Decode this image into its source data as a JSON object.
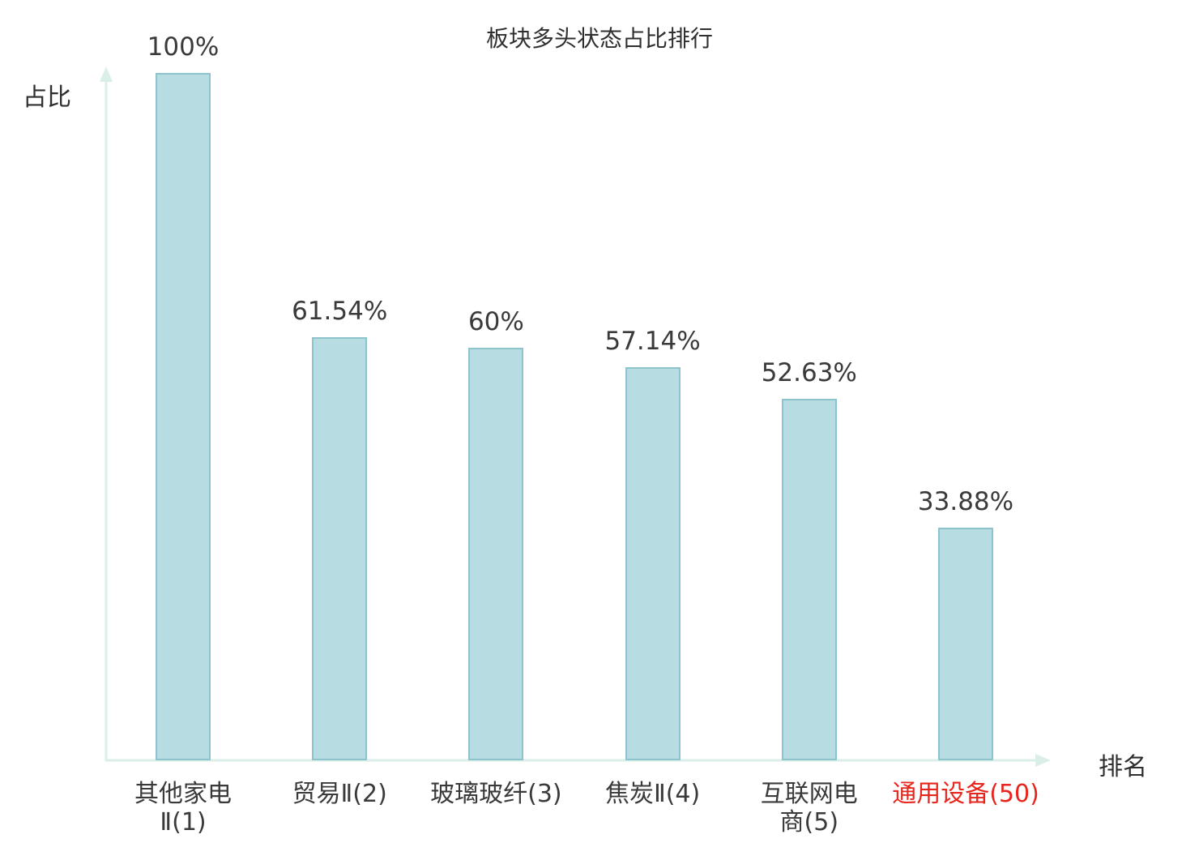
{
  "title": "板块多头状态占比排行",
  "axis": {
    "y_label": "占比",
    "x_label": "排名"
  },
  "colors": {
    "bar_fill": "#b7dde2",
    "bar_border": "#8cc3cc",
    "axis_line": "#d9efe8",
    "text": "#3a3a3a",
    "highlight_text": "#e8251d",
    "background": "#ffffff"
  },
  "chart_data": {
    "type": "bar",
    "title": "板块多头状态占比排行",
    "xlabel": "排名",
    "ylabel": "占比",
    "ylim": [
      0,
      100
    ],
    "grid": false,
    "legend": false,
    "categories": [
      "其他家电Ⅱ(1)",
      "贸易Ⅱ(2)",
      "玻璃玻纤(3)",
      "焦炭Ⅱ(4)",
      "互联网电商(5)",
      "通用设备(50)"
    ],
    "display_labels": [
      "其他家电\nⅡ(1)",
      "贸易Ⅱ(2)",
      "玻璃玻纤(3)",
      "焦炭Ⅱ(4)",
      "互联网电\n商(5)",
      "通用设备(50)"
    ],
    "values": [
      100,
      61.54,
      60,
      57.14,
      52.63,
      33.88
    ],
    "value_labels": [
      "100%",
      "61.54%",
      "60%",
      "57.14%",
      "52.63%",
      "33.88%"
    ],
    "highlight_index": 5
  }
}
